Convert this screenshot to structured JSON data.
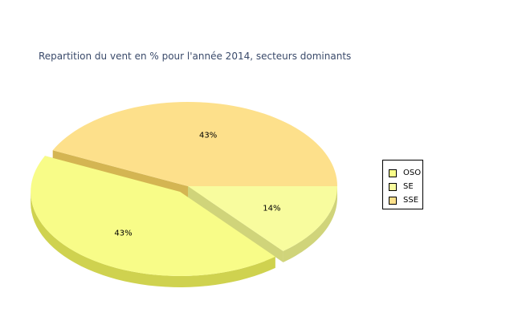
{
  "chart_data": {
    "type": "pie",
    "title": "Repartition du vent en % pour l'année 2014, secteurs dominants",
    "categories": [
      "OSO",
      "SE",
      "SSE"
    ],
    "values": [
      43,
      14,
      43
    ],
    "labels": [
      "43%",
      "14%",
      "43%"
    ],
    "colors": [
      "#f8fc88",
      "#f8fc9e",
      "#fde08b"
    ],
    "side_colors": [
      "#cfd24f",
      "#d0d47a",
      "#d4b552"
    ],
    "exploded": [
      true,
      false,
      false
    ],
    "three_d": true,
    "legend_position": "right",
    "legend": [
      {
        "label": "OSO",
        "color": "#f8fc88"
      },
      {
        "label": "SE",
        "color": "#f8fc9e"
      },
      {
        "label": "SSE",
        "color": "#fde08b"
      }
    ]
  }
}
